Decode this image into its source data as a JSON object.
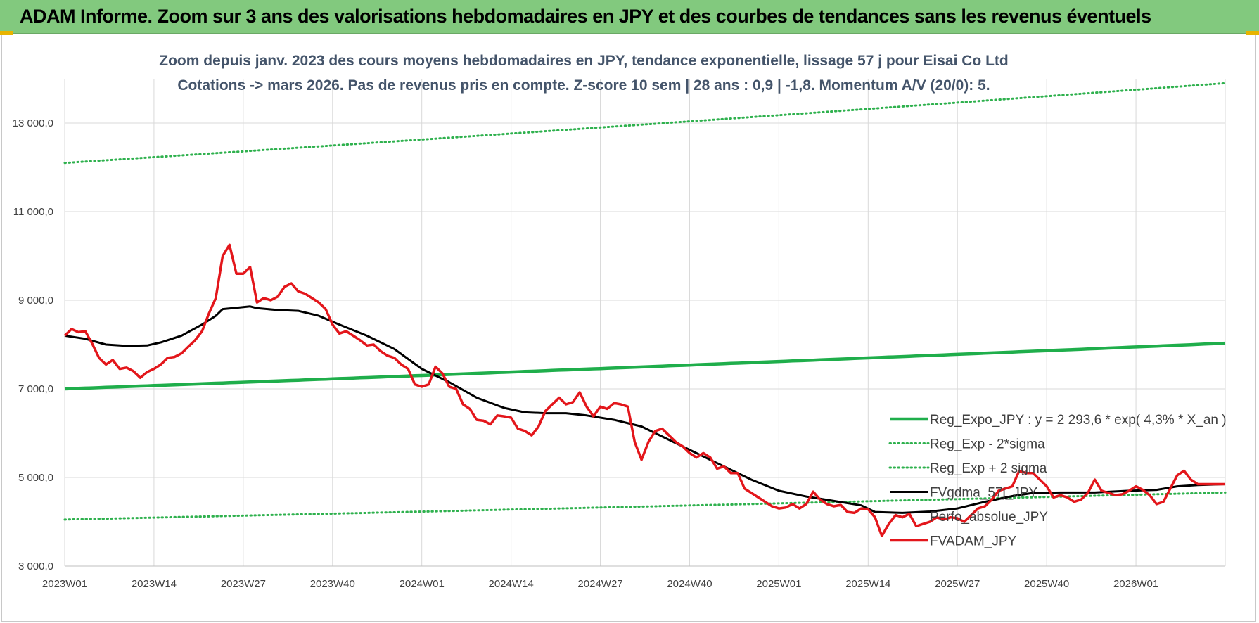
{
  "header": {
    "title": "ADAM Informe. Zoom sur 3 ans des valorisations hebdomadaires en JPY et des courbes de tendances sans les revenus éventuels"
  },
  "colors": {
    "banner": "#82c97e",
    "trend": "#1fae4b",
    "sigma": "#2fb14e",
    "smooth": "#000000",
    "price": "#e3161b"
  },
  "chart_data": {
    "type": "line",
    "title": "",
    "subtitle_lines": [
      "Zoom depuis janv. 2023 des cours moyens hebdomadaires en JPY, tendance exponentielle, lissage 57 j pour Eisai Co Ltd",
      "Cotations -> mars 2026. Pas de revenus pris en compte. Z-score 10 sem | 28 ans : 0,9 | -1,8. Momentum A/V (20/0): 5."
    ],
    "xlabel": "",
    "ylabel": "",
    "x_tick_labels": [
      "2023W01",
      "2023W14",
      "2023W27",
      "2023W40",
      "2024W01",
      "2024W14",
      "2024W27",
      "2024W40",
      "2025W01",
      "2025W14",
      "2025W27",
      "2025W40",
      "2026W01"
    ],
    "x_tick_positions": [
      0,
      13,
      26,
      39,
      52,
      65,
      78,
      91,
      104,
      117,
      130,
      143,
      156
    ],
    "x_max": 169,
    "y_ticks": [
      3000,
      5000,
      7000,
      9000,
      11000,
      13000
    ],
    "y_tick_labels": [
      "3 000,0",
      "5 000,0",
      "7 000,0",
      "9 000,0",
      "11 000,0",
      "13 000,0"
    ],
    "ylim": [
      3000,
      14000
    ],
    "grid": true,
    "legend_position": "right",
    "series": [
      {
        "name": "Reg_Expo_JPY : y = 2 293,6 * exp( 4,3% *  X_an )",
        "style": "trend",
        "start": 7000,
        "end": 8030
      },
      {
        "name": "Reg_Exp - 2*sigma",
        "style": "sigma-low",
        "start": 4050,
        "end": 4660
      },
      {
        "name": "Reg_Exp + 2 sigma",
        "style": "sigma-high",
        "start": 12100,
        "end": 13900
      },
      {
        "name": "FVgdma_57j_JPY",
        "style": "smooth",
        "points": [
          [
            0,
            8200
          ],
          [
            3,
            8130
          ],
          [
            6,
            8000
          ],
          [
            9,
            7970
          ],
          [
            12,
            7980
          ],
          [
            14,
            8050
          ],
          [
            17,
            8200
          ],
          [
            20,
            8450
          ],
          [
            22,
            8650
          ],
          [
            23,
            8800
          ],
          [
            25,
            8830
          ],
          [
            27,
            8860
          ],
          [
            28,
            8820
          ],
          [
            31,
            8780
          ],
          [
            34,
            8760
          ],
          [
            37,
            8650
          ],
          [
            40,
            8450
          ],
          [
            44,
            8200
          ],
          [
            48,
            7900
          ],
          [
            52,
            7450
          ],
          [
            56,
            7150
          ],
          [
            60,
            6800
          ],
          [
            64,
            6570
          ],
          [
            67,
            6470
          ],
          [
            70,
            6450
          ],
          [
            73,
            6450
          ],
          [
            76,
            6400
          ],
          [
            80,
            6300
          ],
          [
            84,
            6150
          ],
          [
            88,
            5850
          ],
          [
            92,
            5550
          ],
          [
            96,
            5250
          ],
          [
            100,
            4950
          ],
          [
            104,
            4700
          ],
          [
            108,
            4570
          ],
          [
            112,
            4470
          ],
          [
            116,
            4370
          ],
          [
            118,
            4220
          ],
          [
            122,
            4200
          ],
          [
            126,
            4230
          ],
          [
            130,
            4300
          ],
          [
            134,
            4450
          ],
          [
            138,
            4580
          ],
          [
            141,
            4650
          ],
          [
            145,
            4660
          ],
          [
            150,
            4660
          ],
          [
            155,
            4700
          ],
          [
            159,
            4720
          ],
          [
            162,
            4800
          ],
          [
            165,
            4830
          ],
          [
            169,
            4850
          ]
        ]
      },
      {
        "name": "Perfo_absolue_JPY",
        "style": "hidden",
        "points": []
      },
      {
        "name": "FVADAM_JPY",
        "style": "price",
        "points": [
          [
            0,
            8200
          ],
          [
            1,
            8350
          ],
          [
            2,
            8280
          ],
          [
            3,
            8300
          ],
          [
            4,
            8020
          ],
          [
            5,
            7700
          ],
          [
            6,
            7550
          ],
          [
            7,
            7650
          ],
          [
            8,
            7450
          ],
          [
            9,
            7480
          ],
          [
            10,
            7400
          ],
          [
            11,
            7250
          ],
          [
            12,
            7380
          ],
          [
            13,
            7450
          ],
          [
            14,
            7550
          ],
          [
            15,
            7700
          ],
          [
            16,
            7720
          ],
          [
            17,
            7800
          ],
          [
            18,
            7950
          ],
          [
            19,
            8100
          ],
          [
            20,
            8300
          ],
          [
            21,
            8700
          ],
          [
            22,
            9050
          ],
          [
            23,
            10000
          ],
          [
            24,
            10250
          ],
          [
            25,
            9600
          ],
          [
            26,
            9600
          ],
          [
            27,
            9750
          ],
          [
            28,
            8950
          ],
          [
            29,
            9050
          ],
          [
            30,
            9000
          ],
          [
            31,
            9080
          ],
          [
            32,
            9300
          ],
          [
            33,
            9380
          ],
          [
            34,
            9200
          ],
          [
            35,
            9150
          ],
          [
            36,
            9050
          ],
          [
            37,
            8950
          ],
          [
            38,
            8800
          ],
          [
            39,
            8450
          ],
          [
            40,
            8250
          ],
          [
            41,
            8300
          ],
          [
            42,
            8200
          ],
          [
            43,
            8100
          ],
          [
            44,
            7980
          ],
          [
            45,
            8000
          ],
          [
            46,
            7850
          ],
          [
            47,
            7750
          ],
          [
            48,
            7700
          ],
          [
            49,
            7550
          ],
          [
            50,
            7450
          ],
          [
            51,
            7100
          ],
          [
            52,
            7050
          ],
          [
            53,
            7100
          ],
          [
            54,
            7500
          ],
          [
            55,
            7350
          ],
          [
            56,
            7050
          ],
          [
            57,
            7000
          ],
          [
            58,
            6650
          ],
          [
            59,
            6550
          ],
          [
            60,
            6300
          ],
          [
            61,
            6280
          ],
          [
            62,
            6200
          ],
          [
            63,
            6400
          ],
          [
            64,
            6380
          ],
          [
            65,
            6350
          ],
          [
            66,
            6100
          ],
          [
            67,
            6050
          ],
          [
            68,
            5950
          ],
          [
            69,
            6150
          ],
          [
            70,
            6500
          ],
          [
            71,
            6650
          ],
          [
            72,
            6800
          ],
          [
            73,
            6650
          ],
          [
            74,
            6700
          ],
          [
            75,
            6920
          ],
          [
            76,
            6600
          ],
          [
            77,
            6380
          ],
          [
            78,
            6600
          ],
          [
            79,
            6550
          ],
          [
            80,
            6680
          ],
          [
            81,
            6650
          ],
          [
            82,
            6600
          ],
          [
            83,
            5800
          ],
          [
            84,
            5400
          ],
          [
            85,
            5800
          ],
          [
            86,
            6050
          ],
          [
            87,
            6100
          ],
          [
            88,
            5950
          ],
          [
            89,
            5800
          ],
          [
            90,
            5700
          ],
          [
            91,
            5550
          ],
          [
            92,
            5450
          ],
          [
            93,
            5550
          ],
          [
            94,
            5450
          ],
          [
            95,
            5200
          ],
          [
            96,
            5250
          ],
          [
            97,
            5100
          ],
          [
            98,
            5100
          ],
          [
            99,
            4750
          ],
          [
            100,
            4650
          ],
          [
            101,
            4550
          ],
          [
            102,
            4450
          ],
          [
            103,
            4350
          ],
          [
            104,
            4300
          ],
          [
            105,
            4320
          ],
          [
            106,
            4400
          ],
          [
            107,
            4300
          ],
          [
            108,
            4400
          ],
          [
            109,
            4680
          ],
          [
            110,
            4500
          ],
          [
            111,
            4400
          ],
          [
            112,
            4350
          ],
          [
            113,
            4380
          ],
          [
            114,
            4220
          ],
          [
            115,
            4200
          ],
          [
            116,
            4300
          ],
          [
            117,
            4280
          ],
          [
            118,
            4100
          ],
          [
            119,
            3680
          ],
          [
            120,
            3950
          ],
          [
            121,
            4150
          ],
          [
            122,
            4100
          ],
          [
            123,
            4180
          ],
          [
            124,
            3900
          ],
          [
            125,
            3950
          ],
          [
            126,
            4000
          ],
          [
            127,
            4100
          ],
          [
            128,
            4050
          ],
          [
            129,
            4100
          ],
          [
            130,
            4080
          ],
          [
            131,
            4000
          ],
          [
            132,
            4150
          ],
          [
            133,
            4300
          ],
          [
            134,
            4350
          ],
          [
            135,
            4500
          ],
          [
            136,
            4700
          ],
          [
            137,
            4750
          ],
          [
            138,
            4800
          ],
          [
            139,
            5150
          ],
          [
            140,
            5100
          ],
          [
            141,
            5100
          ],
          [
            142,
            4950
          ],
          [
            143,
            4800
          ],
          [
            144,
            4550
          ],
          [
            145,
            4600
          ],
          [
            146,
            4550
          ],
          [
            147,
            4450
          ],
          [
            148,
            4500
          ],
          [
            149,
            4650
          ],
          [
            150,
            4950
          ],
          [
            151,
            4700
          ],
          [
            152,
            4650
          ],
          [
            153,
            4600
          ],
          [
            154,
            4620
          ],
          [
            155,
            4700
          ],
          [
            156,
            4800
          ],
          [
            157,
            4720
          ],
          [
            158,
            4600
          ],
          [
            159,
            4400
          ],
          [
            160,
            4450
          ],
          [
            161,
            4750
          ],
          [
            162,
            5050
          ],
          [
            163,
            5150
          ],
          [
            164,
            4950
          ],
          [
            165,
            4850
          ],
          [
            167,
            4850
          ],
          [
            169,
            4850
          ]
        ]
      }
    ]
  }
}
